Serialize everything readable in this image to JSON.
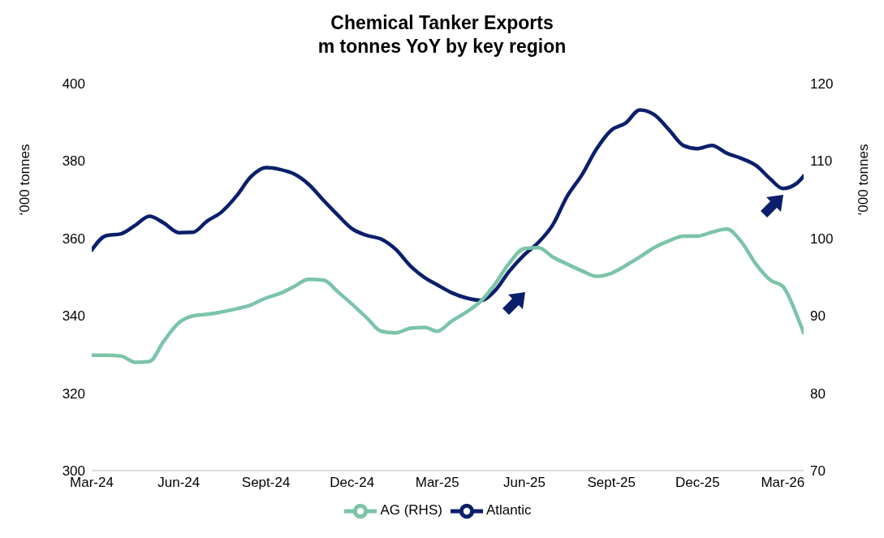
{
  "chart_data": {
    "type": "line",
    "title": "Chemical Tanker Exports",
    "subtitle": "m tonnes YoY by key region",
    "ylabel": "‘000 tonnes",
    "y2label": "‘000 tonnes",
    "x": [
      "2024-03-01",
      "2024-03-16",
      "2024-04-01",
      "2024-04-16",
      "2024-05-01",
      "2024-05-16",
      "2024-06-01",
      "2024-06-16",
      "2024-07-01",
      "2024-07-16",
      "2024-08-01",
      "2024-08-16",
      "2024-09-01",
      "2024-09-16",
      "2024-10-01",
      "2024-10-16",
      "2024-11-01",
      "2024-11-16",
      "2024-12-01",
      "2024-12-16",
      "2025-01-01",
      "2025-01-16",
      "2025-02-01",
      "2025-02-16",
      "2025-03-01",
      "2025-03-16",
      "2025-04-01",
      "2025-04-16",
      "2025-05-01",
      "2025-05-16",
      "2025-06-01",
      "2025-06-16",
      "2025-07-01",
      "2025-07-16",
      "2025-08-01",
      "2025-08-16",
      "2025-09-01",
      "2025-09-16",
      "2025-10-01",
      "2025-10-16",
      "2025-11-01",
      "2025-11-16",
      "2025-12-01",
      "2025-12-16",
      "2026-01-01",
      "2026-01-16",
      "2026-02-01",
      "2026-02-16",
      "2026-03-01",
      "2026-03-16",
      "2026-03-23"
    ],
    "series": [
      {
        "name": "Atlantic",
        "color": "#0b1f6b",
        "values": [
          357,
          360.7,
          361.2,
          363.4,
          365.7,
          364,
          361.5,
          361.6,
          364.5,
          366.8,
          371,
          375.9,
          378.3,
          377.8,
          376.6,
          374,
          369.8,
          366,
          362.5,
          360.8,
          359.8,
          357.2,
          352.8,
          349.8,
          348,
          346,
          344.6,
          344,
          346.5,
          351.5,
          355.8,
          359,
          363.5,
          370.8,
          376.5,
          383,
          388,
          389.8,
          393.2,
          392,
          388,
          384,
          383.2,
          384,
          382,
          380.7,
          378.8,
          375.3,
          372.9,
          374.3,
          376.1
        ]
      },
      {
        "name": "AG (RHS)",
        "color": "#7cc4a8",
        "axis": "y2",
        "values": [
          84.9,
          84.9,
          84.8,
          84,
          84.1,
          86.7,
          89.1,
          90,
          90.2,
          90.5,
          90.9,
          91.4,
          92.3,
          92.9,
          93.8,
          94.7,
          94.6,
          93.1,
          91.5,
          89.8,
          88,
          87.8,
          88.4,
          88.5,
          88,
          89.3,
          90.5,
          91.9,
          94.1,
          96.8,
          98.7,
          98.8,
          97.6,
          96.7,
          95.8,
          95.1,
          95.5,
          96.5,
          97.6,
          98.8,
          99.7,
          100.3,
          100.3,
          100.8,
          101.2,
          99.6,
          96.6,
          94.6,
          93.8,
          90,
          87.8
        ]
      }
    ],
    "xlim": [
      "2024-03-01",
      "2026-03-23"
    ],
    "xticks": [
      {
        "value": "2024-03-01",
        "label": "Mar-24"
      },
      {
        "value": "2024-06-01",
        "label": "Jun-24"
      },
      {
        "value": "2024-09-01",
        "label": "Sept-24"
      },
      {
        "value": "2024-12-01",
        "label": "Dec-24"
      },
      {
        "value": "2025-03-01",
        "label": "Mar-25"
      },
      {
        "value": "2025-06-01",
        "label": "Jun-25"
      },
      {
        "value": "2025-09-01",
        "label": "Sept-25"
      },
      {
        "value": "2025-12-01",
        "label": "Dec-25"
      },
      {
        "value": "2026-03-01",
        "label": "Mar-26"
      }
    ],
    "ylim": [
      300,
      400
    ],
    "yticks": [
      300,
      320,
      340,
      360,
      380,
      400
    ],
    "y2lim": [
      70,
      120
    ],
    "y2ticks": [
      70,
      80,
      90,
      100,
      110,
      120
    ],
    "grid": false,
    "legend": "bottom",
    "marker": "none",
    "line_style": "solid"
  }
}
